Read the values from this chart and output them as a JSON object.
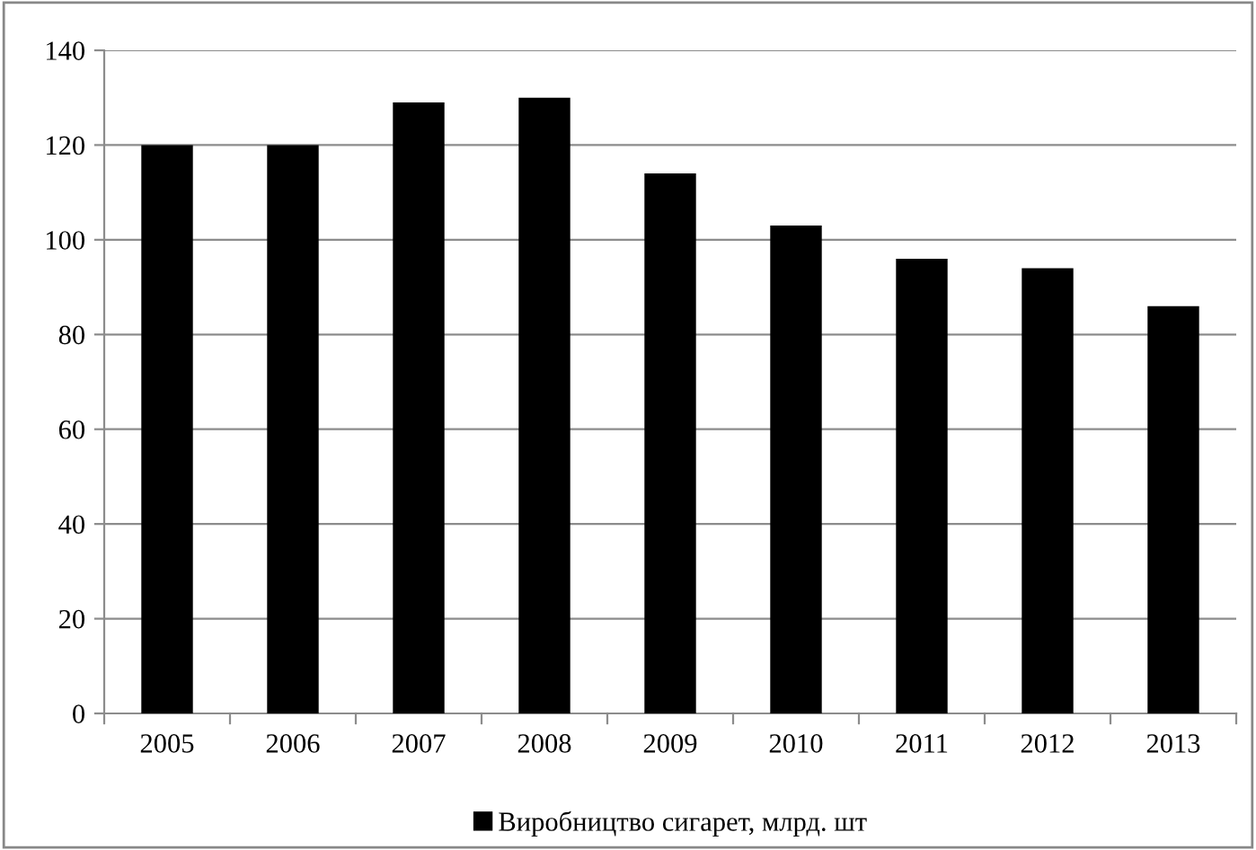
{
  "chart_data": {
    "type": "bar",
    "categories": [
      "2005",
      "2006",
      "2007",
      "2008",
      "2009",
      "2010",
      "2011",
      "2012",
      "2013"
    ],
    "series": [
      {
        "name": "Виробництво сигарет, млрд. шт",
        "color": "#000000",
        "values": [
          120,
          120,
          129,
          130,
          114,
          103,
          96,
          94,
          86
        ]
      }
    ],
    "ylim": [
      0,
      140
    ],
    "yticks": [
      0,
      20,
      40,
      60,
      80,
      100,
      120,
      140
    ],
    "grid": "y",
    "legend": "bottom"
  }
}
